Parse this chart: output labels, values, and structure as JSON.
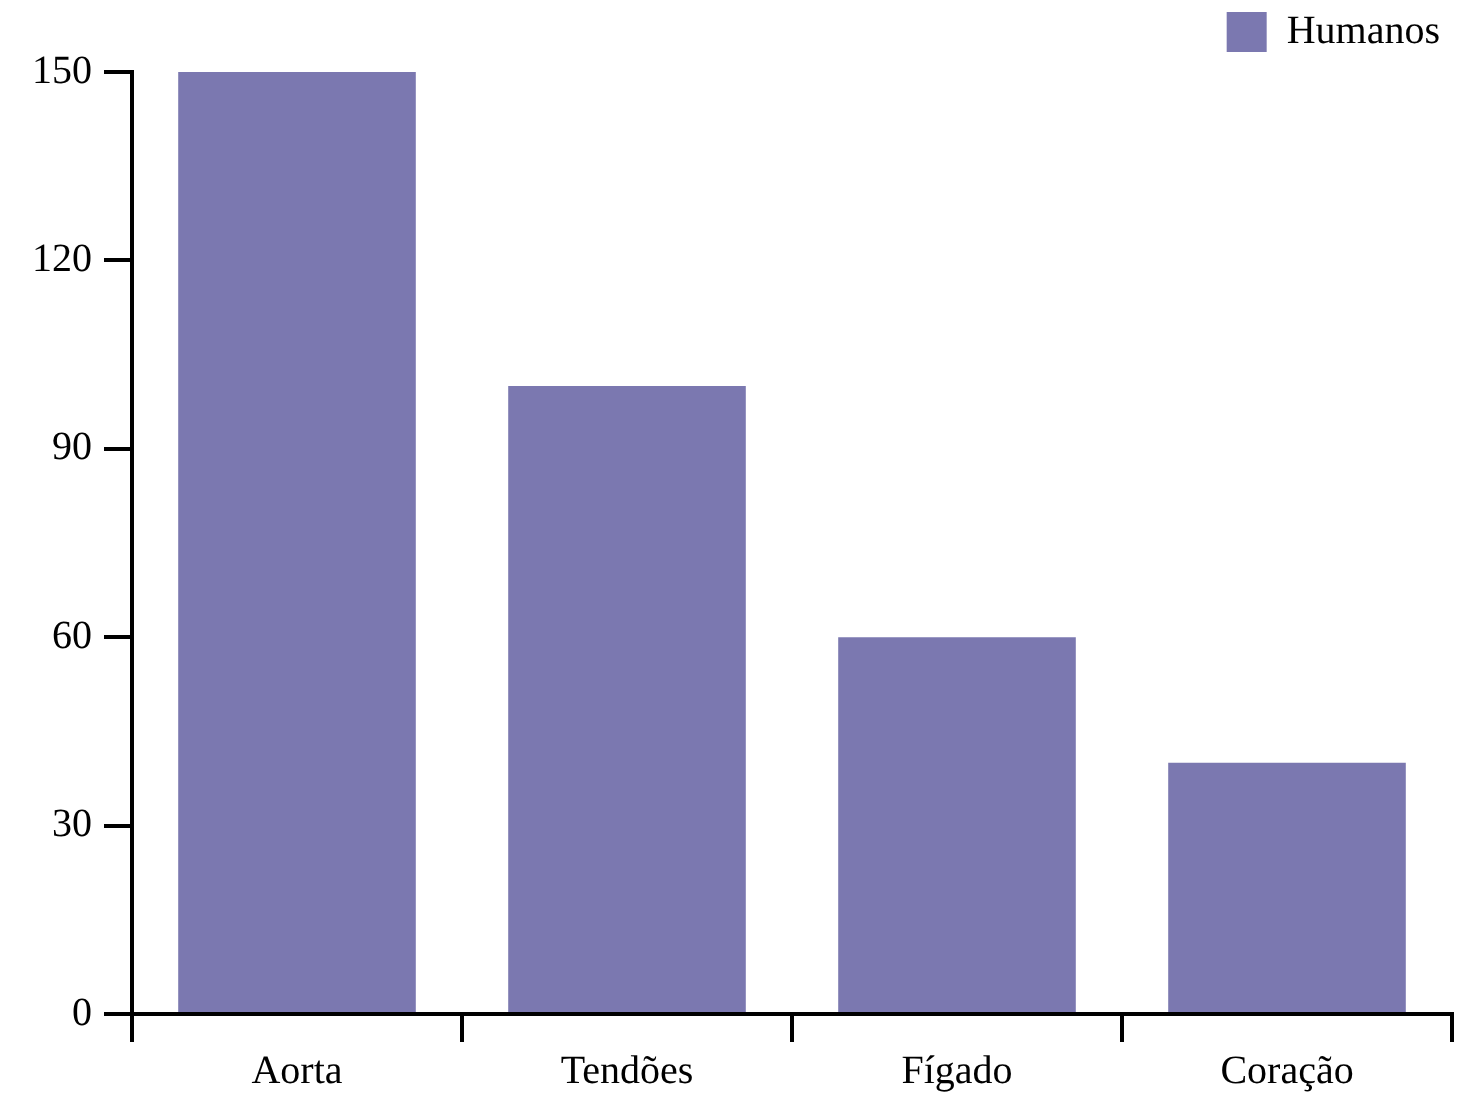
{
  "chart_data": {
    "type": "bar",
    "categories": [
      "Aorta",
      "Tendões",
      "Fígado",
      "Coração"
    ],
    "series": [
      {
        "name": "Humanos",
        "color": "#7b78b0",
        "values": [
          150,
          100,
          60,
          40
        ]
      }
    ],
    "ylim": [
      0,
      150
    ],
    "yticks": [
      0,
      30,
      60,
      90,
      120,
      150
    ],
    "grid": false,
    "legend": "top right"
  }
}
